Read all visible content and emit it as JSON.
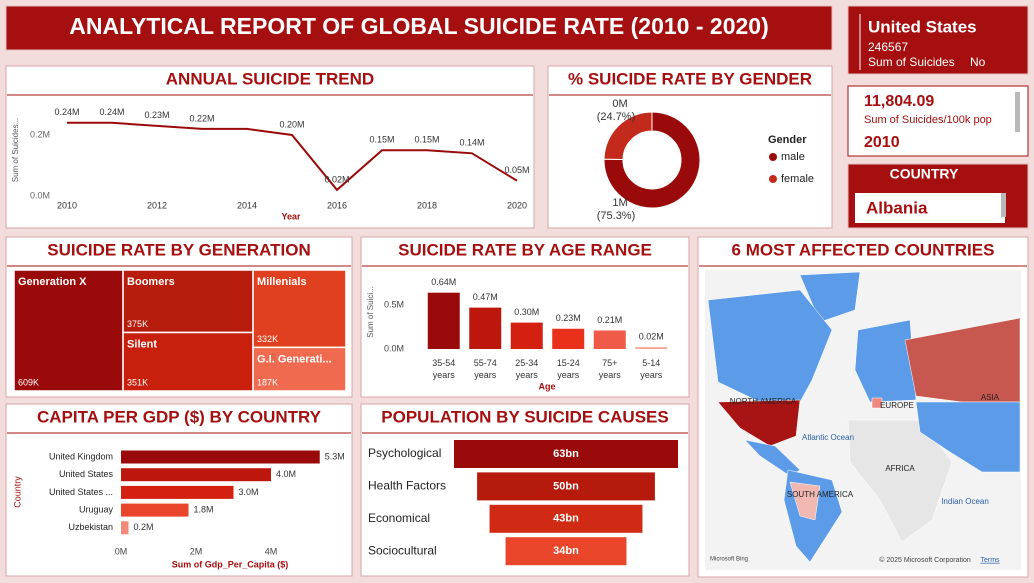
{
  "header": {
    "title": "ANALYTICAL REPORT OF GLOBAL SUICIDE RATE (2010 - 2020)"
  },
  "cards": [
    {
      "country": "United States",
      "value": 246567,
      "label": "Sum of Suicides",
      "flag": "No"
    },
    {
      "value": "11,804.09",
      "label": "Sum of Suicides/100k pop",
      "year": 2010
    },
    {
      "title": "COUNTRY",
      "selected": "Albania"
    }
  ],
  "chart_data": [
    {
      "type": "line",
      "title": "ANNUAL SUICIDE TREND",
      "x_label": "Year",
      "y_label": "Sum of Suicides...",
      "x": [
        2010,
        2011,
        2012,
        2013,
        2014,
        2015,
        2016,
        2017,
        2018,
        2019,
        2020
      ],
      "values": [
        0.24,
        0.24,
        0.23,
        0.22,
        0.22,
        0.2,
        0.02,
        0.15,
        0.15,
        0.14,
        0.05
      ],
      "value_labels": [
        "0.24M",
        "0.24M",
        "0.23M",
        "0.22M",
        null,
        "0.20M",
        "0.02M",
        "0.15M",
        "0.15M",
        "0.14M",
        "0.05M"
      ],
      "color": "#9b0a0a",
      "xlim": [
        2010,
        2020
      ],
      "xticks": [
        2010,
        2012,
        2014,
        2016,
        2018,
        2020
      ],
      "ylim": [
        0,
        0.3
      ],
      "yticks": [
        {
          "value": 0,
          "label": "0.0M"
        },
        {
          "value": 0.2,
          "label": "0.2M"
        }
      ]
    },
    {
      "type": "donut",
      "title": "% SUICIDE RATE BY GENDER",
      "legend_title": "Gender",
      "categories": [
        "male",
        "female"
      ],
      "values": [
        75.3,
        24.7
      ],
      "value_labels": [
        "(75.3%)",
        "(24.7%)"
      ],
      "count_labels": [
        "1M",
        "0M"
      ],
      "colors": [
        "#9b0a0a",
        "#c42a1c"
      ]
    },
    {
      "type": "treemap",
      "title": "SUICIDE RATE BY GENERATION",
      "categories": [
        "Generation X",
        "Boomers",
        "Silent",
        "Millenials",
        "G.I. Generati..."
      ],
      "values": [
        609,
        375,
        351,
        332,
        187
      ],
      "value_labels": [
        "609K",
        "375K",
        "351K",
        "332K",
        "187K"
      ],
      "colors": [
        "#9b0a0a",
        "#b71c0c",
        "#c9200e",
        "#e0401f",
        "#ef6a4e"
      ]
    },
    {
      "type": "bar",
      "title": "SUICIDE RATE BY AGE RANGE",
      "x_label": "Age",
      "y_label": "Sum of Suici...",
      "categories": [
        "35-54 years",
        "55-74 years",
        "25-34 years",
        "15-24 years",
        "75+ years",
        "5-14 years"
      ],
      "values": [
        0.64,
        0.47,
        0.3,
        0.23,
        0.21,
        0.02
      ],
      "value_labels": [
        "0.64M",
        "0.47M",
        "0.30M",
        "0.23M",
        "0.21M",
        "0.02M"
      ],
      "colors": [
        "#9b0a0a",
        "#bd160c",
        "#d42010",
        "#e8301a",
        "#f05a48",
        "#f5a090"
      ],
      "ylim": [
        0,
        0.7
      ],
      "yticks": [
        {
          "value": 0,
          "label": "0.0M"
        },
        {
          "value": 0.5,
          "label": "0.5M"
        }
      ]
    },
    {
      "type": "hbar",
      "title": "CAPITA PER GDP ($) BY COUNTRY",
      "x_label": "Sum of Gdp_Per_Capita ($)",
      "y_label": "Country",
      "categories": [
        "United Kingdom",
        "United States",
        "United States ...",
        "Uruguay",
        "Uzbekistan"
      ],
      "values": [
        5.3,
        4.0,
        3.0,
        1.8,
        0.2
      ],
      "value_labels": [
        "5.3M",
        "4.0M",
        "3.0M",
        "1.8M",
        "0.2M"
      ],
      "colors": [
        "#9b0a0a",
        "#bd160c",
        "#d42010",
        "#e8452a",
        "#f28a7a"
      ],
      "xlim": [
        0,
        5.8
      ],
      "xticks": [
        {
          "value": 0,
          "label": "0M"
        },
        {
          "value": 2,
          "label": "2M"
        },
        {
          "value": 4,
          "label": "4M"
        }
      ]
    },
    {
      "type": "funnel",
      "title": "POPULATION BY SUICIDE CAUSES",
      "categories": [
        "Psychological",
        "Health Factors",
        "Economical",
        "Sociocultural"
      ],
      "values": [
        63,
        50,
        43,
        34
      ],
      "value_labels": [
        "63bn",
        "50bn",
        "43bn",
        "34bn"
      ],
      "colors": [
        "#9b0a0a",
        "#b51a0c",
        "#d02a14",
        "#e8452a"
      ]
    }
  ],
  "map": {
    "title": "6 MOST AFFECTED COUNTRIES",
    "labels": [
      "NORTH AMERICA",
      "EUROPE",
      "ASIA",
      "Atlantic Ocean",
      "AFRICA",
      "SOUTH AMERICA",
      "Indian Ocean"
    ],
    "credit": "© 2025 Microsoft Corporation",
    "terms": "Terms",
    "logo": "Microsoft Bing"
  }
}
